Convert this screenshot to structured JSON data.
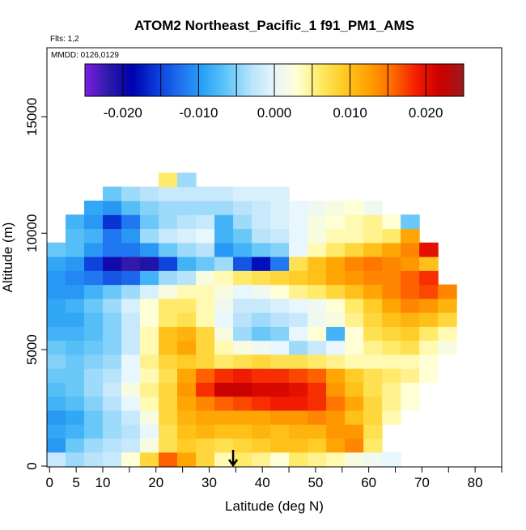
{
  "chart_data": {
    "type": "heatmap",
    "title": "ATOM2 Northeast_Pacific_1 f91_PM1_AMS",
    "annotations": [
      "Flts: 1,2",
      "MMDD: 0126,0129"
    ],
    "xlabel": "Latitude (deg N)",
    "ylabel": "Altitude (m)",
    "xlim": [
      -0.5,
      85
    ],
    "ylim": [
      0,
      18000
    ],
    "x_ticks": [
      0,
      5,
      10,
      20,
      30,
      40,
      50,
      60,
      70,
      80
    ],
    "x_tick_labels": [
      "0",
      "5",
      "10",
      "20",
      "30",
      "40",
      "50",
      "60",
      "70",
      "80"
    ],
    "y_ticks": [
      0,
      5000,
      10000,
      15000
    ],
    "y_tick_labels": [
      "0",
      "5000",
      "10000",
      "15000"
    ],
    "colorbar": {
      "range": [
        -0.025,
        0.025
      ],
      "ticks": [
        -0.02,
        -0.01,
        0.0,
        0.01,
        0.02
      ],
      "tick_labels": [
        "-0.020",
        "-0.010",
        "0.000",
        "0.010",
        "0.020"
      ],
      "colors": [
        "#7b1fe0",
        "#2e1aa8",
        "#0000b0",
        "#0a3ad8",
        "#1f6ef0",
        "#2aa3f5",
        "#62c6f8",
        "#b6e2fb",
        "#e8f6fd",
        "#ffffd2",
        "#ffe860",
        "#ffc820",
        "#ffa000",
        "#ff6a00",
        "#f51c00",
        "#cc0000",
        "#9c1b1b"
      ],
      "placement": "top-inside"
    },
    "marker": {
      "x": 34.5,
      "y": 0,
      "symbol": "down-arrow"
    },
    "cells": [
      [
        -0.002,
        -0.004,
        -0.003,
        -0.002,
        0.003,
        0.008,
        0.016,
        0.012,
        0.008,
        0.004,
        0.006,
        0.005,
        0.003,
        0.006,
        0.005,
        0.004,
        0.002,
        0.001,
        0.0,
        null,
        null,
        null,
        null
      ],
      [
        -0.01,
        -0.006,
        -0.004,
        -0.003,
        -0.002,
        0.002,
        0.007,
        0.009,
        0.008,
        0.007,
        0.008,
        0.009,
        0.01,
        0.01,
        0.009,
        0.012,
        0.014,
        0.006,
        null,
        null,
        null,
        null,
        null
      ],
      [
        -0.009,
        -0.008,
        -0.006,
        -0.004,
        -0.003,
        0.0,
        0.007,
        0.01,
        0.011,
        0.01,
        0.01,
        0.011,
        0.01,
        0.011,
        0.011,
        0.013,
        0.013,
        0.007,
        null,
        null,
        null,
        null,
        null
      ],
      [
        -0.01,
        -0.009,
        -0.006,
        -0.004,
        -0.002,
        0.002,
        0.008,
        0.011,
        0.012,
        0.012,
        0.012,
        0.012,
        0.013,
        0.013,
        0.014,
        0.013,
        0.01,
        0.008,
        0.004,
        null,
        null,
        null,
        null
      ],
      [
        -0.008,
        -0.007,
        -0.005,
        -0.003,
        0.0,
        0.004,
        0.008,
        0.012,
        0.014,
        0.016,
        0.017,
        0.018,
        0.019,
        0.019,
        0.018,
        0.015,
        0.012,
        0.008,
        0.005,
        0.003,
        null,
        null,
        null
      ],
      [
        -0.007,
        -0.006,
        -0.004,
        -0.002,
        0.002,
        0.005,
        0.008,
        0.013,
        0.018,
        0.022,
        0.022,
        0.021,
        0.021,
        0.02,
        0.018,
        0.013,
        0.01,
        0.007,
        0.005,
        0.003,
        null,
        null,
        null
      ],
      [
        -0.006,
        -0.006,
        -0.004,
        -0.003,
        0.0,
        0.004,
        0.007,
        0.012,
        0.016,
        0.018,
        0.019,
        0.018,
        0.018,
        0.017,
        0.016,
        0.012,
        0.009,
        0.007,
        0.006,
        0.005,
        0.003,
        null,
        null
      ],
      [
        -0.005,
        -0.006,
        -0.005,
        -0.004,
        0.0,
        0.005,
        0.008,
        0.009,
        0.008,
        0.006,
        0.007,
        0.008,
        0.007,
        0.007,
        0.006,
        0.005,
        0.004,
        0.004,
        0.004,
        0.004,
        0.003,
        null,
        null
      ],
      [
        -0.006,
        -0.007,
        -0.006,
        -0.005,
        -0.002,
        0.004,
        0.01,
        0.012,
        0.008,
        0.004,
        0.002,
        0.001,
        0.0,
        -0.004,
        -0.002,
        0.0,
        0.003,
        0.005,
        0.006,
        0.007,
        0.004,
        0.002,
        null
      ],
      [
        -0.008,
        -0.008,
        -0.007,
        -0.005,
        -0.002,
        0.004,
        0.01,
        0.011,
        0.008,
        0.002,
        -0.004,
        -0.006,
        -0.005,
        0.0,
        0.003,
        -0.008,
        0.003,
        0.007,
        0.008,
        0.009,
        0.006,
        0.004,
        null
      ],
      [
        -0.009,
        -0.009,
        -0.007,
        -0.005,
        -0.002,
        0.003,
        0.006,
        0.007,
        0.004,
        0.0,
        -0.003,
        -0.004,
        -0.003,
        -0.002,
        0.001,
        0.002,
        0.005,
        0.008,
        0.01,
        0.011,
        0.01,
        0.008,
        null
      ],
      [
        -0.009,
        -0.008,
        -0.006,
        -0.004,
        -0.001,
        0.003,
        0.006,
        0.006,
        0.004,
        0.001,
        -0.002,
        -0.002,
        -0.001,
        0.0,
        0.001,
        0.003,
        0.006,
        0.009,
        0.012,
        0.014,
        0.013,
        0.011,
        null
      ],
      [
        -0.01,
        -0.01,
        -0.008,
        -0.006,
        -0.004,
        -0.001,
        0.002,
        0.004,
        0.004,
        0.002,
        0.0,
        0.001,
        0.003,
        0.005,
        0.006,
        0.008,
        0.01,
        0.012,
        0.014,
        0.016,
        0.017,
        0.014,
        null
      ],
      [
        -0.01,
        -0.011,
        -0.012,
        -0.014,
        -0.013,
        -0.008,
        -0.004,
        -0.003,
        0.002,
        0.004,
        0.006,
        0.007,
        0.008,
        0.009,
        0.01,
        0.012,
        0.013,
        0.014,
        0.014,
        0.016,
        0.018,
        null,
        null
      ],
      [
        -0.009,
        -0.01,
        -0.015,
        -0.02,
        -0.022,
        -0.021,
        -0.015,
        -0.008,
        -0.006,
        -0.004,
        -0.014,
        -0.018,
        -0.012,
        0.007,
        0.01,
        0.012,
        0.014,
        0.015,
        0.014,
        0.013,
        0.01,
        null,
        null
      ],
      [
        -0.006,
        -0.007,
        -0.01,
        -0.012,
        -0.012,
        -0.01,
        -0.006,
        -0.004,
        -0.003,
        -0.01,
        -0.008,
        -0.006,
        -0.005,
        0.0,
        0.004,
        0.006,
        0.008,
        0.01,
        0.012,
        0.014,
        0.02,
        null,
        null
      ],
      [
        null,
        -0.007,
        -0.008,
        -0.012,
        -0.01,
        -0.004,
        -0.002,
        -0.001,
        0.0,
        -0.008,
        -0.006,
        -0.003,
        -0.002,
        0.0,
        0.002,
        0.004,
        0.004,
        0.005,
        0.006,
        0.012,
        null,
        null,
        null
      ],
      [
        null,
        -0.008,
        -0.01,
        -0.016,
        -0.012,
        -0.006,
        -0.004,
        -0.003,
        -0.002,
        -0.008,
        -0.004,
        -0.002,
        -0.001,
        0.0,
        0.002,
        0.003,
        0.004,
        0.005,
        0.003,
        -0.006,
        null,
        null,
        null
      ],
      [
        null,
        null,
        -0.009,
        -0.01,
        -0.007,
        -0.005,
        -0.004,
        -0.004,
        -0.004,
        -0.004,
        -0.003,
        -0.002,
        -0.001,
        0.0,
        0.001,
        0.002,
        0.003,
        0.001,
        null,
        null,
        null,
        null,
        null
      ],
      [
        null,
        null,
        null,
        -0.006,
        -0.004,
        -0.003,
        -0.002,
        -0.002,
        -0.002,
        -0.002,
        -0.001,
        -0.001,
        -0.001,
        null,
        null,
        null,
        null,
        null,
        null,
        null,
        null,
        null,
        null
      ],
      [
        null,
        null,
        null,
        null,
        null,
        null,
        0.006,
        -0.004,
        null,
        null,
        null,
        null,
        null,
        null,
        null,
        null,
        null,
        null,
        null,
        null,
        null,
        null,
        null
      ]
    ],
    "cell_lat_start": -0.5,
    "cell_lat_step": 3.5,
    "cell_alt_start": 0,
    "cell_alt_step": 600
  }
}
